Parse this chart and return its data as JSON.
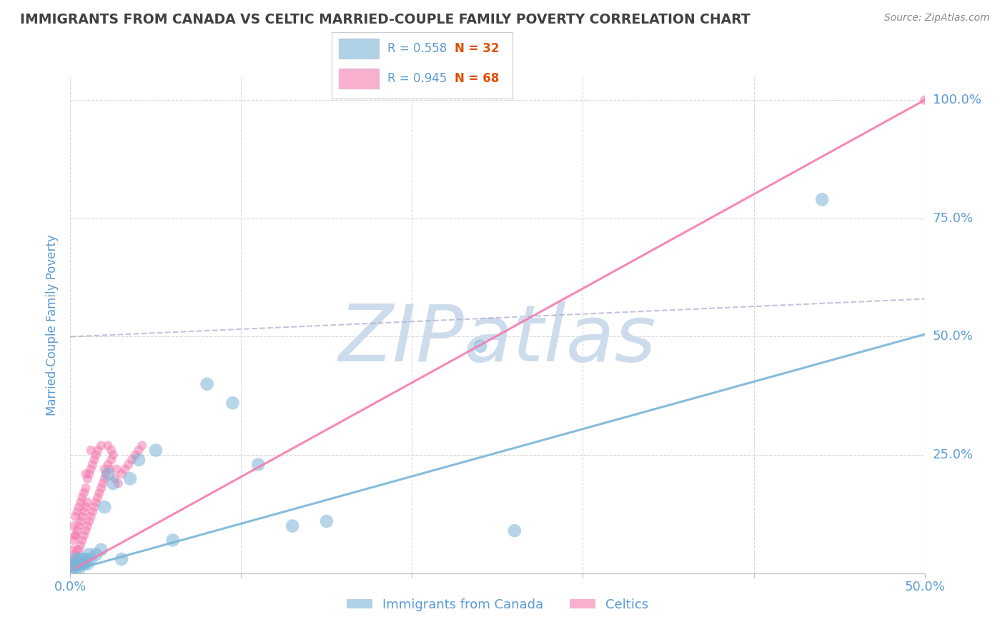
{
  "title": "IMMIGRANTS FROM CANADA VS CELTIC MARRIED-COUPLE FAMILY POVERTY CORRELATION CHART",
  "source": "Source: ZipAtlas.com",
  "ylabel": "Married-Couple Family Poverty",
  "xlim": [
    0.0,
    0.5
  ],
  "ylim": [
    0.0,
    1.05
  ],
  "xticks": [
    0.0,
    0.1,
    0.2,
    0.3,
    0.4,
    0.5
  ],
  "yticks": [
    0.0,
    0.25,
    0.5,
    0.75,
    1.0
  ],
  "legend_R1": "R = 0.558",
  "legend_N1": "N = 32",
  "legend_R2": "R = 0.945",
  "legend_N2": "N = 68",
  "legend_label1": "Immigrants from Canada",
  "legend_label2": "Celtics",
  "blue_color": "#7ab4d8",
  "pink_color": "#f47cb0",
  "axis_label_color": "#5b9bd5",
  "title_color": "#404040",
  "watermark_text": "ZIPatlas",
  "watermark_color": "#cddcec",
  "blue_scatter_x": [
    0.001,
    0.002,
    0.003,
    0.003,
    0.004,
    0.005,
    0.005,
    0.006,
    0.007,
    0.008,
    0.009,
    0.01,
    0.011,
    0.012,
    0.015,
    0.018,
    0.02,
    0.022,
    0.025,
    0.03,
    0.035,
    0.04,
    0.05,
    0.06,
    0.08,
    0.095,
    0.11,
    0.13,
    0.15,
    0.24,
    0.26,
    0.44
  ],
  "blue_scatter_y": [
    0.01,
    0.02,
    0.01,
    0.03,
    0.02,
    0.01,
    0.03,
    0.02,
    0.03,
    0.02,
    0.03,
    0.02,
    0.04,
    0.03,
    0.04,
    0.05,
    0.14,
    0.21,
    0.19,
    0.03,
    0.2,
    0.24,
    0.26,
    0.07,
    0.4,
    0.36,
    0.23,
    0.1,
    0.11,
    0.48,
    0.09,
    0.79
  ],
  "pink_scatter_x": [
    0.001,
    0.001,
    0.002,
    0.002,
    0.002,
    0.003,
    0.003,
    0.003,
    0.004,
    0.004,
    0.004,
    0.005,
    0.005,
    0.005,
    0.006,
    0.006,
    0.006,
    0.007,
    0.007,
    0.007,
    0.008,
    0.008,
    0.008,
    0.009,
    0.009,
    0.009,
    0.01,
    0.01,
    0.01,
    0.011,
    0.011,
    0.012,
    0.012,
    0.013,
    0.013,
    0.014,
    0.014,
    0.015,
    0.015,
    0.016,
    0.016,
    0.017,
    0.018,
    0.018,
    0.019,
    0.02,
    0.02,
    0.021,
    0.022,
    0.022,
    0.023,
    0.024,
    0.024,
    0.025,
    0.026,
    0.027,
    0.028,
    0.03,
    0.032,
    0.034,
    0.036,
    0.038,
    0.04,
    0.042,
    0.003,
    0.009,
    0.012,
    0.5
  ],
  "pink_scatter_y": [
    0.02,
    0.05,
    0.03,
    0.07,
    0.1,
    0.04,
    0.08,
    0.12,
    0.05,
    0.09,
    0.13,
    0.05,
    0.1,
    0.14,
    0.06,
    0.11,
    0.15,
    0.07,
    0.12,
    0.16,
    0.08,
    0.13,
    0.17,
    0.09,
    0.14,
    0.18,
    0.1,
    0.15,
    0.2,
    0.11,
    0.21,
    0.12,
    0.22,
    0.13,
    0.23,
    0.14,
    0.24,
    0.15,
    0.25,
    0.16,
    0.26,
    0.17,
    0.18,
    0.27,
    0.19,
    0.2,
    0.22,
    0.21,
    0.23,
    0.27,
    0.22,
    0.24,
    0.26,
    0.25,
    0.2,
    0.22,
    0.19,
    0.21,
    0.22,
    0.23,
    0.24,
    0.25,
    0.26,
    0.27,
    0.08,
    0.21,
    0.26,
    1.0
  ],
  "blue_line_x": [
    0.0,
    0.5
  ],
  "blue_line_y": [
    0.005,
    0.505
  ],
  "pink_line_x": [
    0.0,
    0.5
  ],
  "pink_line_y": [
    0.005,
    1.0
  ],
  "dash_line_x": [
    0.0,
    0.5
  ],
  "dash_line_y": [
    0.5,
    0.58
  ],
  "grid_color": "#d8d8d8",
  "background_color": "#ffffff",
  "N_color": "#e05000"
}
